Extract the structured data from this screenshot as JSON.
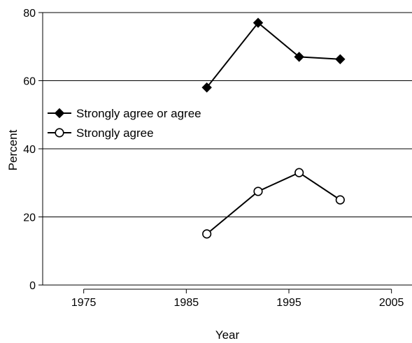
{
  "chart_data": {
    "type": "line",
    "title": "",
    "xlabel": "Year",
    "ylabel": "Percent",
    "xlim": [
      1971,
      2007
    ],
    "ylim": [
      0,
      80
    ],
    "x_ticks": [
      1975,
      1985,
      1995,
      2005
    ],
    "y_ticks": [
      0,
      20,
      40,
      60,
      80
    ],
    "grid": "horizontal",
    "legend_position": "upper-left",
    "series": [
      {
        "name": "Strongly agree or agree",
        "marker": "filled-diamond",
        "color": "#000000",
        "points": [
          {
            "x": 1987,
            "y": 58
          },
          {
            "x": 1992,
            "y": 77
          },
          {
            "x": 1996,
            "y": 67
          },
          {
            "x": 2000,
            "y": 66.3
          }
        ]
      },
      {
        "name": "Strongly agree",
        "marker": "open-circle",
        "color": "#000000",
        "points": [
          {
            "x": 1987,
            "y": 15
          },
          {
            "x": 1992,
            "y": 27.5
          },
          {
            "x": 1996,
            "y": 33
          },
          {
            "x": 2000,
            "y": 25
          }
        ]
      }
    ]
  }
}
